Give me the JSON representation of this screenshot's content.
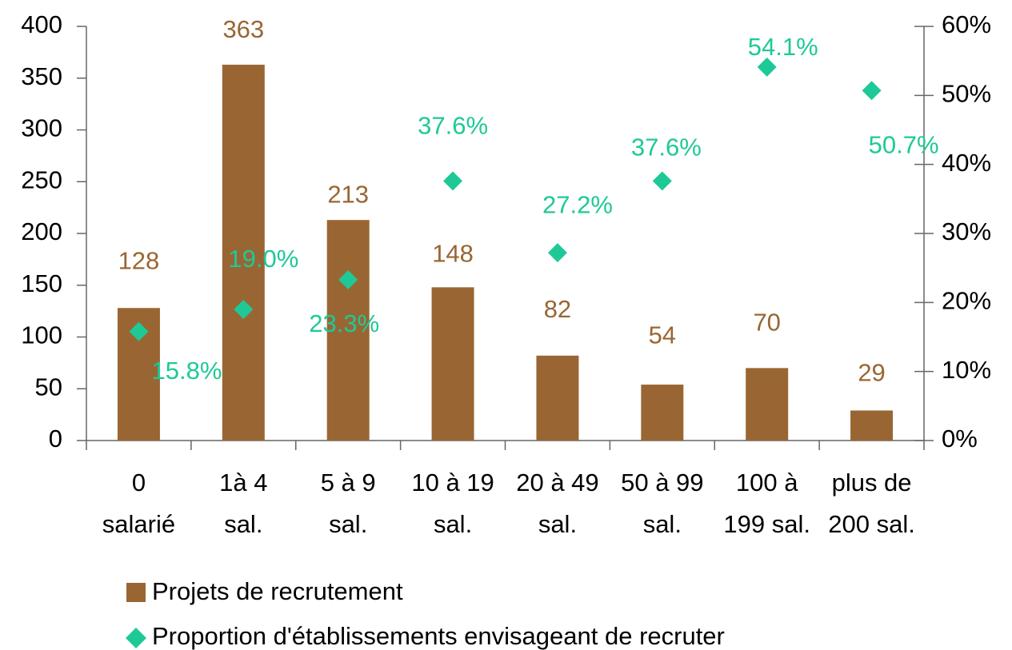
{
  "chart_data": {
    "type": "bar",
    "categories": [
      [
        "0",
        "salarié"
      ],
      [
        "1à 4",
        "sal."
      ],
      [
        "5 à 9",
        "sal."
      ],
      [
        "10 à 19",
        "sal."
      ],
      [
        "20 à 49",
        "sal."
      ],
      [
        "50 à 99",
        "sal."
      ],
      [
        "100 à",
        "199 sal."
      ],
      [
        "plus de",
        "200 sal."
      ]
    ],
    "series": [
      {
        "name": "Projets de recrutement",
        "color": "#996633",
        "type": "bar",
        "values": [
          128,
          363,
          213,
          148,
          82,
          54,
          70,
          29
        ]
      },
      {
        "name": "Proportion d'établissements envisageant de recruter",
        "color": "#1ec997",
        "type": "scatter",
        "axis": "y2",
        "values": [
          15.8,
          19.0,
          23.3,
          37.6,
          27.2,
          37.6,
          54.1,
          50.7
        ],
        "value_labels": [
          "15.8%",
          "19.0%",
          "23.3%",
          "37.6%",
          "27.2%",
          "37.6%",
          "54.1%",
          "50.7%"
        ]
      }
    ],
    "ylim": [
      0,
      400
    ],
    "yticks": [
      0,
      50,
      100,
      150,
      200,
      250,
      300,
      350,
      400
    ],
    "y2lim": [
      0,
      60
    ],
    "y2ticks": [
      {
        "value": 0,
        "label": "0%"
      },
      {
        "value": 10,
        "label": "10%"
      },
      {
        "value": 20,
        "label": "20%"
      },
      {
        "value": 30,
        "label": "30%"
      },
      {
        "value": 40,
        "label": "40%"
      },
      {
        "value": 50,
        "label": "50%"
      },
      {
        "value": 60,
        "label": "60%"
      }
    ]
  }
}
